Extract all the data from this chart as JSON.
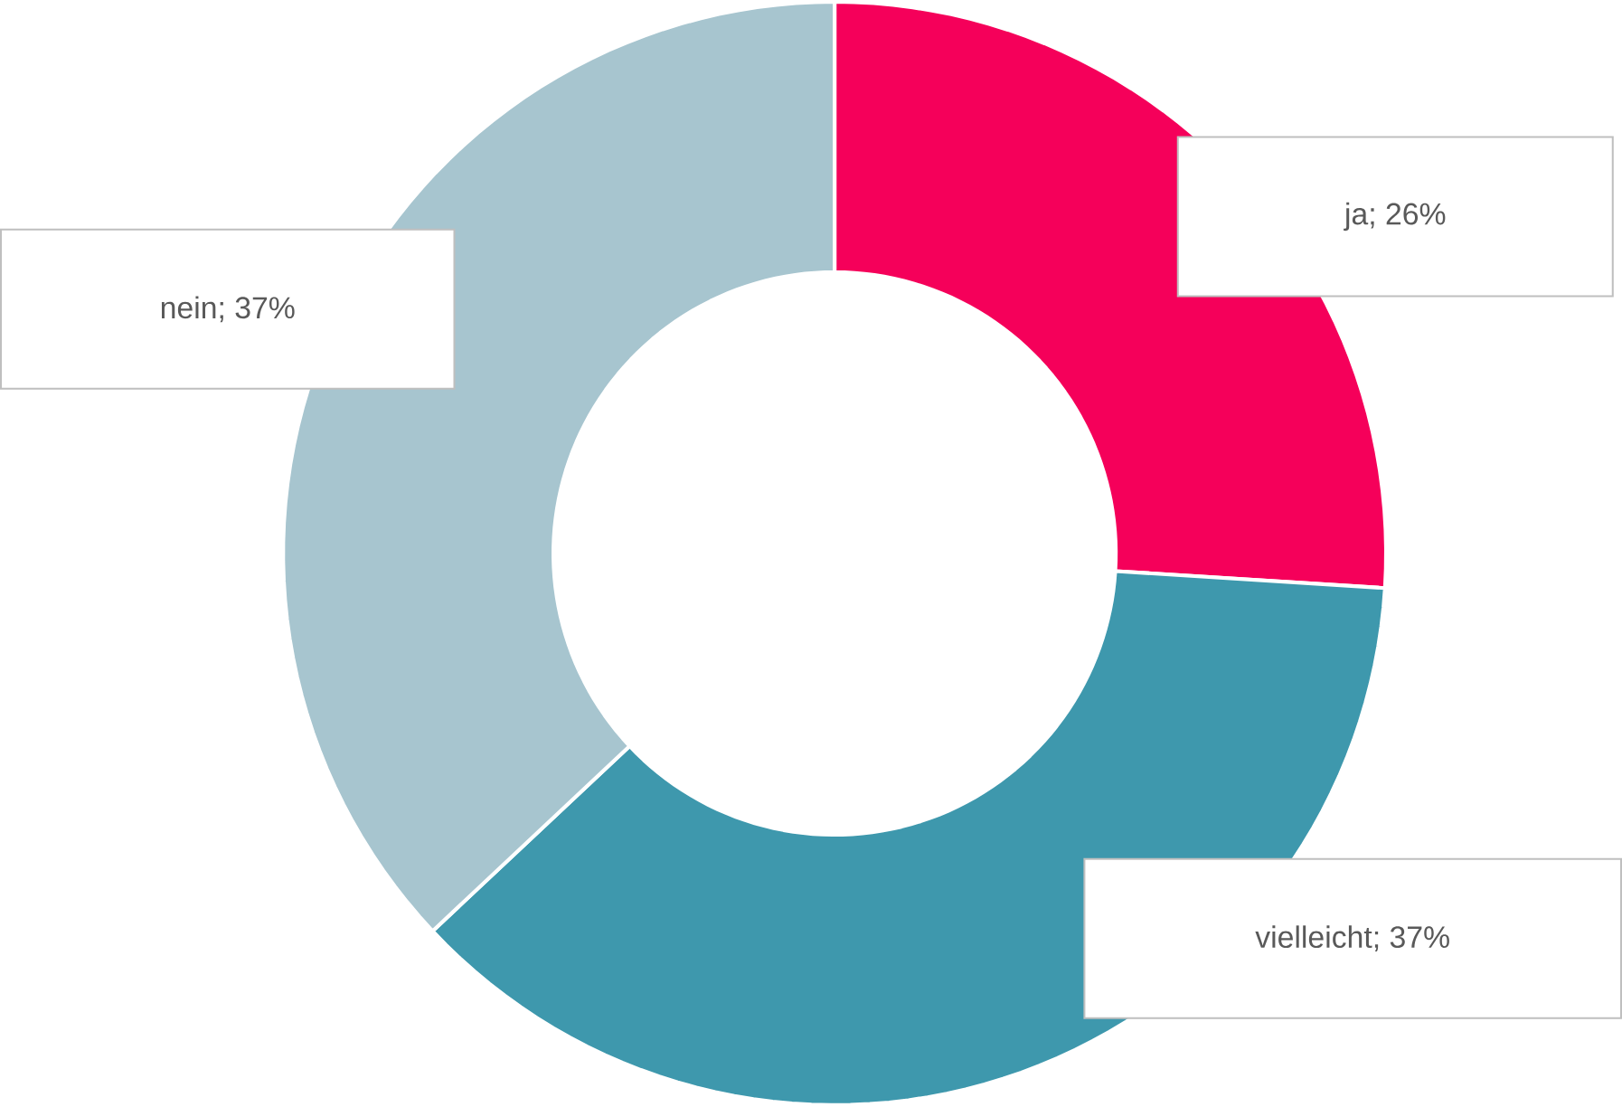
{
  "chart_data": {
    "type": "donut",
    "categories": [
      "ja",
      "vielleicht",
      "nein"
    ],
    "values": [
      26,
      37,
      37
    ],
    "colors": [
      "#f5005a",
      "#3e98ad",
      "#a7c5cf"
    ],
    "value_labels": [
      "; 26%",
      "; 37%",
      "; 37%"
    ]
  }
}
